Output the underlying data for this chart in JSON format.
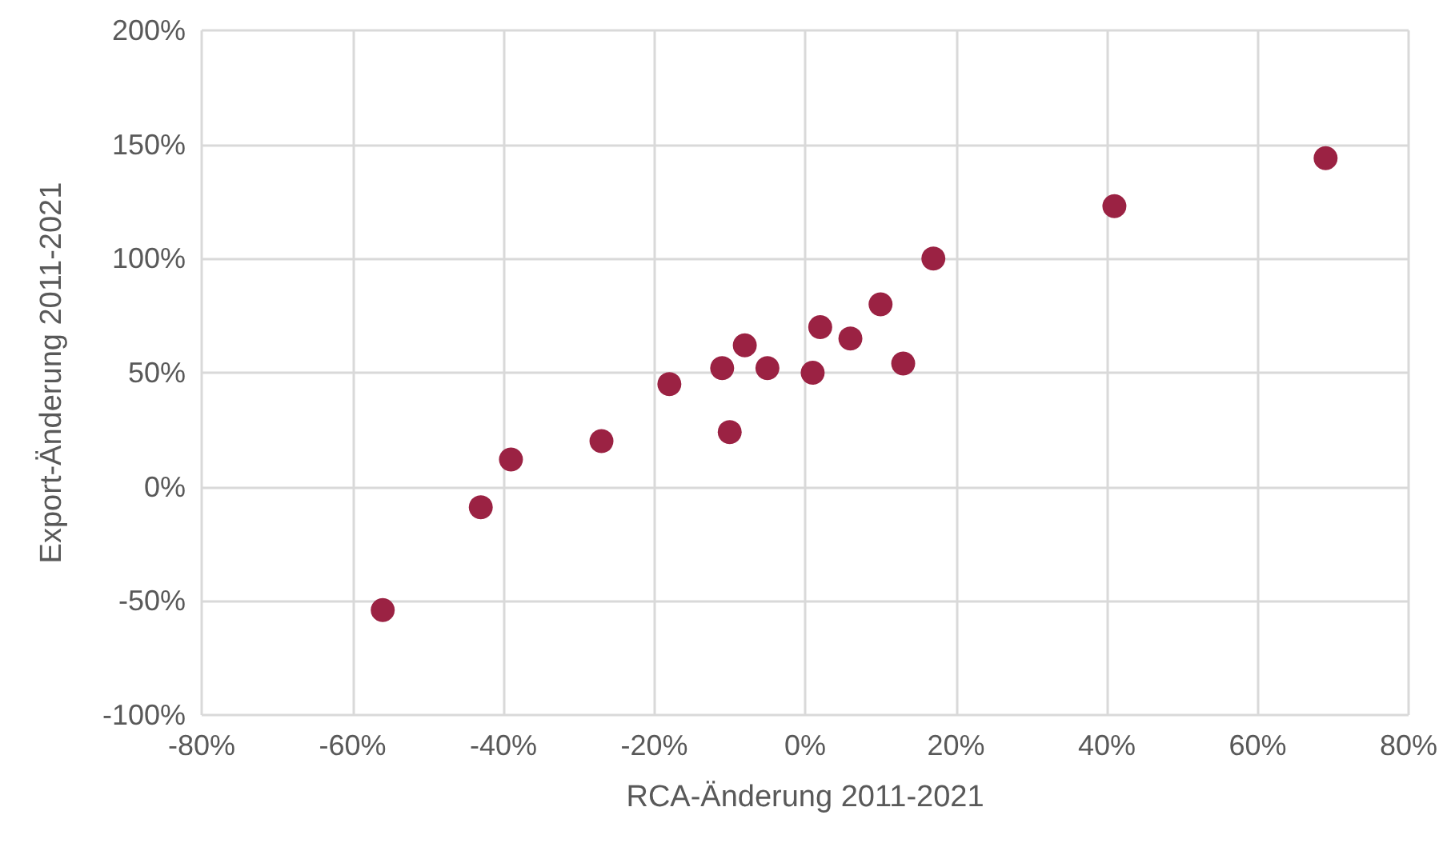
{
  "chart_data": {
    "type": "scatter",
    "xlabel": "RCA-Änderung 2011-2021",
    "ylabel": "Export-Änderung 2011-2021",
    "x": [
      -56,
      -43,
      -39,
      -27,
      -18,
      -11,
      -10,
      -8,
      -5,
      1,
      2,
      6,
      10,
      13,
      17,
      41,
      69
    ],
    "values": [
      -54,
      -9,
      12,
      20,
      45,
      52,
      24,
      62,
      52,
      50,
      70,
      65,
      80,
      54,
      100,
      123,
      144
    ],
    "color": "#9b2243",
    "marker": "circle",
    "xlim": [
      -80,
      80
    ],
    "xticks": [
      {
        "value": -80,
        "label": "-80%"
      },
      {
        "value": -60,
        "label": "-60%"
      },
      {
        "value": -40,
        "label": "-40%"
      },
      {
        "value": -20,
        "label": "-20%"
      },
      {
        "value": 0,
        "label": "0%"
      },
      {
        "value": 20,
        "label": "20%"
      },
      {
        "value": 40,
        "label": "40%"
      },
      {
        "value": 60,
        "label": "60%"
      },
      {
        "value": 80,
        "label": "80%"
      }
    ],
    "ylim": [
      -100,
      200
    ],
    "yticks": [
      {
        "value": -100,
        "label": "-100%"
      },
      {
        "value": -50,
        "label": "-50%"
      },
      {
        "value": 0,
        "label": "0%"
      },
      {
        "value": 50,
        "label": "50%"
      },
      {
        "value": 100,
        "label": "100%"
      },
      {
        "value": 150,
        "label": "150%"
      },
      {
        "value": 200,
        "label": "200%"
      }
    ],
    "grid": true
  }
}
